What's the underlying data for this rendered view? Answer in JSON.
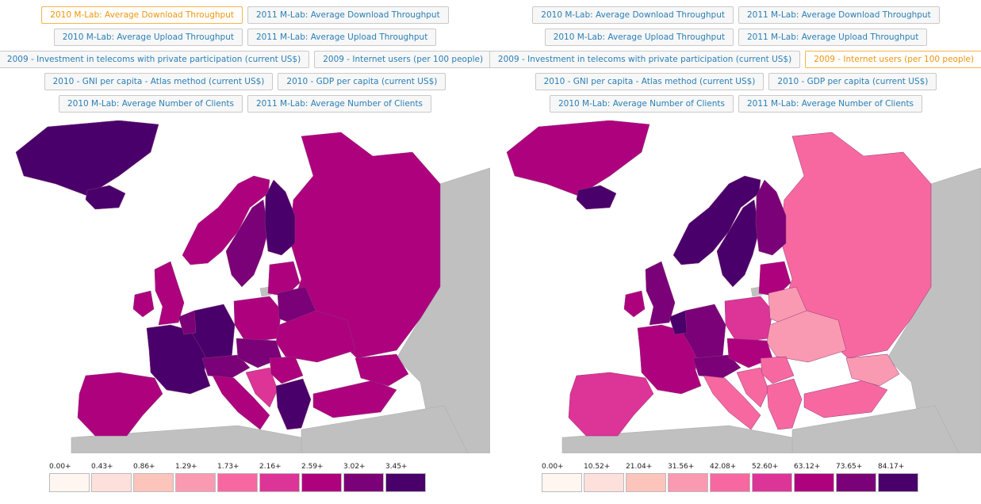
{
  "colors": {
    "ocean": "#ffffff",
    "nodata": "#c0c0c0",
    "border": "#8b3a78",
    "scale": [
      "#fff6f1",
      "#fde0dc",
      "#fcc4bb",
      "#f99ab2",
      "#f768a1",
      "#dd3497",
      "#ae017e",
      "#7a0177",
      "#49006a"
    ]
  },
  "left": {
    "buttons": [
      [
        {
          "label": "2010 M-Lab: Average Download Throughput",
          "active": true
        },
        {
          "label": "2011 M-Lab: Average Download Throughput"
        }
      ],
      [
        {
          "label": "2010 M-Lab: Average Upload Throughput"
        },
        {
          "label": "2011 M-Lab: Average Upload Throughput"
        }
      ],
      [
        {
          "label": "2009 - Investment in telecoms with private participation (current US$)"
        },
        {
          "label": "2009 - Internet users (per 100 people)"
        }
      ],
      [
        {
          "label": "2010 - GNI per capita - Atlas method (current US$)"
        },
        {
          "label": "2010 - GDP per capita (current US$)"
        }
      ],
      [
        {
          "label": "2010 M-Lab: Average Number of Clients"
        },
        {
          "label": "2011 M-Lab: Average Number of Clients"
        }
      ]
    ],
    "legend": [
      "0.00+",
      "0.43+",
      "0.86+",
      "1.29+",
      "1.73+",
      "2.16+",
      "2.59+",
      "3.02+",
      "3.45+"
    ],
    "regions": {
      "greenland": 8,
      "iceland": 8,
      "russia": 6,
      "norway": 6,
      "sweden": 7,
      "finland": 8,
      "uk": 6,
      "ireland": 6,
      "france": 8,
      "iberia": 6,
      "germany": 8,
      "benelux": 7,
      "alps": 7,
      "poland": 6,
      "baltics": 6,
      "belarus": 7,
      "ukraine": 6,
      "italy": 6,
      "central": 7,
      "balkans": 5,
      "romania": 6,
      "bulgaria_greece": 8,
      "turkey": 6,
      "caucasus": 6
    }
  },
  "right": {
    "buttons": [
      [
        {
          "label": "2010 M-Lab: Average Download Throughput"
        },
        {
          "label": "2011 M-Lab: Average Download Throughput"
        }
      ],
      [
        {
          "label": "2010 M-Lab: Average Upload Throughput"
        },
        {
          "label": "2011 M-Lab: Average Upload Throughput"
        }
      ],
      [
        {
          "label": "2009 - Investment in telecoms with private participation (current US$)"
        },
        {
          "label": "2009 - Internet users (per 100 people)",
          "active": true
        }
      ],
      [
        {
          "label": "2010 - GNI per capita - Atlas method (current US$)"
        },
        {
          "label": "2010 - GDP per capita (current US$)"
        }
      ],
      [
        {
          "label": "2010 M-Lab: Average Number of Clients"
        },
        {
          "label": "2011 M-Lab: Average Number of Clients"
        }
      ]
    ],
    "legend": [
      "0.00+",
      "10.52+",
      "21.04+",
      "31.56+",
      "42.08+",
      "52.60+",
      "63.12+",
      "73.65+",
      "84.17+"
    ],
    "regions": {
      "greenland": 6,
      "iceland": 8,
      "russia": 4,
      "norway": 8,
      "sweden": 8,
      "finland": 7,
      "uk": 7,
      "ireland": 6,
      "france": 6,
      "iberia": 5,
      "germany": 7,
      "benelux": 8,
      "alps": 7,
      "poland": 5,
      "baltics": 6,
      "belarus": 3,
      "ukraine": 3,
      "italy": 4,
      "central": 6,
      "balkans": 4,
      "romania": 4,
      "bulgaria_greece": 4,
      "turkey": 4,
      "caucasus": 3
    }
  }
}
